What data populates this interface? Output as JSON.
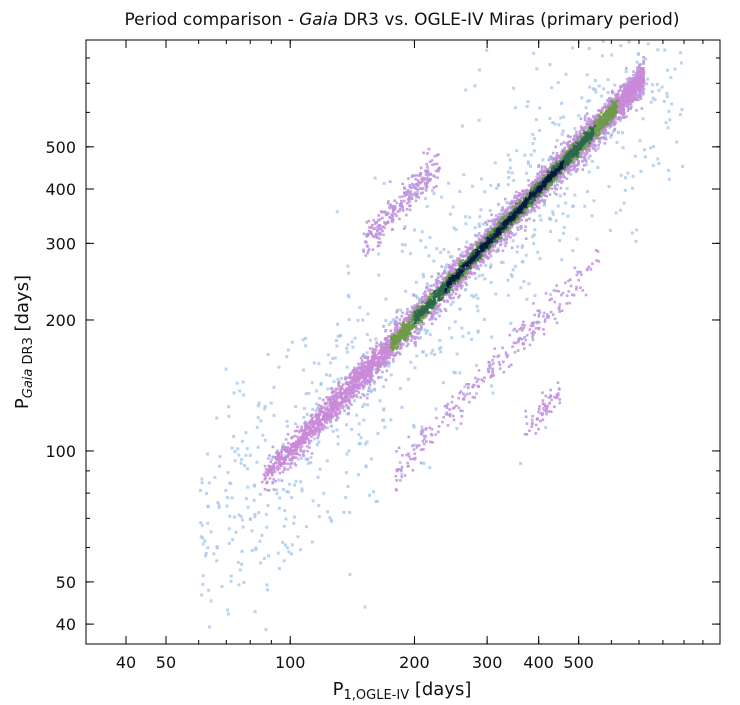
{
  "chart_data": {
    "type": "scatter",
    "title": {
      "prefix": "Period comparison - ",
      "italic": "Gaia",
      "suffix": " DR3 vs. OGLE-IV Miras (primary period)"
    },
    "xlabel": {
      "main": "P",
      "sub": "1,OGLE-IV",
      "unit": " [days]"
    },
    "ylabel": {
      "main": "P",
      "sub_italic": "Gaia",
      "sub": " DR3",
      "unit": " [days]"
    },
    "xscale": "log",
    "yscale": "log",
    "xlim": [
      32,
      1100
    ],
    "ylim": [
      36,
      880
    ],
    "xticks": [
      {
        "v": 40,
        "label": "40"
      },
      {
        "v": 50,
        "label": "50"
      },
      {
        "v": 100,
        "label": "100"
      },
      {
        "v": 200,
        "label": "200"
      },
      {
        "v": 300,
        "label": "300"
      },
      {
        "v": 400,
        "label": "400"
      },
      {
        "v": 500,
        "label": "500"
      }
    ],
    "yticks": [
      {
        "v": 40,
        "label": "40"
      },
      {
        "v": 50,
        "label": "50"
      },
      {
        "v": 100,
        "label": "100"
      },
      {
        "v": 200,
        "label": "200"
      },
      {
        "v": 300,
        "label": "300"
      },
      {
        "v": 400,
        "label": "400"
      },
      {
        "v": 500,
        "label": "500"
      }
    ],
    "grid": false,
    "colors": {
      "sparse": "#a9c8ea",
      "low": "#b79ae0",
      "mid": "#c98ad8",
      "midhigh": "#6f9a4a",
      "high": "#2a6a4a",
      "peak": "#0b1840"
    },
    "density_description_clusters": [
      {
        "name": "one-to-one",
        "x_range": [
          85,
          700
        ],
        "relation": "y=x"
      },
      {
        "name": "double-period",
        "x_range": [
          150,
          220
        ],
        "relation": "y=2x"
      },
      {
        "name": "half-period",
        "x_range": [
          180,
          560
        ],
        "relation": "y=x/2"
      },
      {
        "name": "third-period",
        "x_range": [
          350,
          460
        ],
        "relation": "y=x/3"
      }
    ]
  }
}
